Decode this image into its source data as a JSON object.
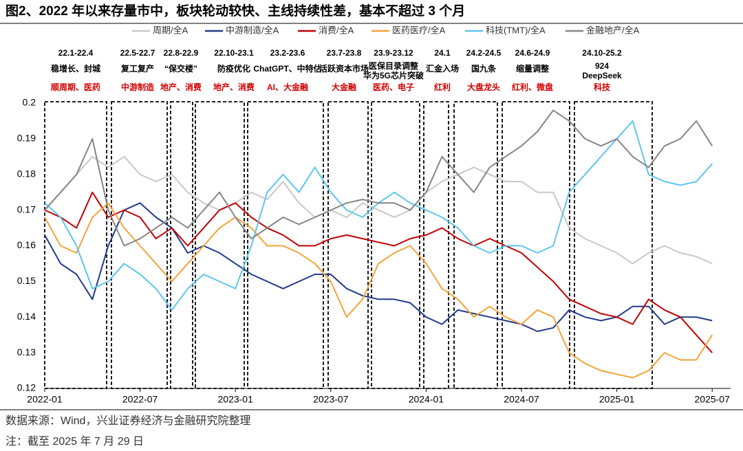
{
  "chart_data": {
    "type": "line",
    "title": "图2、2022 年以来存量市中，板块轮动较快、主线持续性差，基本不超过 3 个月",
    "source": "数据来源：Wind，兴业证券经济与金融研究院整理",
    "note": "注：截至 2025 年 7 月 29 日",
    "x": [
      "2022-01",
      "2022-02",
      "2022-03",
      "2022-04",
      "2022-05",
      "2022-06",
      "2022-07",
      "2022-08",
      "2022-09",
      "2022-10",
      "2022-11",
      "2022-12",
      "2023-01",
      "2023-02",
      "2023-03",
      "2023-04",
      "2023-05",
      "2023-06",
      "2023-07",
      "2023-08",
      "2023-09",
      "2023-10",
      "2023-11",
      "2023-12",
      "2024-01",
      "2024-02",
      "2024-03",
      "2024-04",
      "2024-05",
      "2024-06",
      "2024-07",
      "2024-08",
      "2024-09",
      "2024-10",
      "2024-11",
      "2024-12",
      "2025-01",
      "2025-02",
      "2025-03",
      "2025-04",
      "2025-05",
      "2025-06",
      "2025-07"
    ],
    "xticks": [
      "2022-01",
      "2022-07",
      "2023-01",
      "2023-07",
      "2024-01",
      "2024-07",
      "2025-01",
      "2025-07"
    ],
    "ylim": [
      0.12,
      0.2
    ],
    "yticks": [
      0.12,
      0.13,
      0.14,
      0.15,
      0.16,
      0.17,
      0.18,
      0.19,
      0.2
    ],
    "grid": false,
    "series": [
      {
        "name": "周期/全A",
        "color": "#c8c8c8",
        "values": [
          0.17,
          0.175,
          0.18,
          0.185,
          0.182,
          0.185,
          0.18,
          0.178,
          0.18,
          0.175,
          0.172,
          0.17,
          0.172,
          0.175,
          0.173,
          0.178,
          0.172,
          0.168,
          0.17,
          0.168,
          0.172,
          0.17,
          0.168,
          0.17,
          0.175,
          0.178,
          0.18,
          0.182,
          0.18,
          0.178,
          0.178,
          0.175,
          0.175,
          0.165,
          0.162,
          0.16,
          0.158,
          0.155,
          0.158,
          0.16,
          0.158,
          0.157,
          0.155
        ]
      },
      {
        "name": "中游制造/全A",
        "color": "#1f3a8a",
        "values": [
          0.163,
          0.155,
          0.152,
          0.145,
          0.16,
          0.17,
          0.172,
          0.168,
          0.165,
          0.158,
          0.16,
          0.158,
          0.155,
          0.152,
          0.15,
          0.148,
          0.15,
          0.152,
          0.152,
          0.148,
          0.146,
          0.145,
          0.145,
          0.144,
          0.14,
          0.138,
          0.142,
          0.141,
          0.14,
          0.139,
          0.138,
          0.136,
          0.137,
          0.142,
          0.14,
          0.139,
          0.14,
          0.143,
          0.143,
          0.138,
          0.14,
          0.14,
          0.139
        ]
      },
      {
        "name": "消费/全A",
        "color": "#c00000",
        "values": [
          0.17,
          0.168,
          0.165,
          0.175,
          0.168,
          0.17,
          0.168,
          0.162,
          0.165,
          0.16,
          0.165,
          0.17,
          0.172,
          0.168,
          0.165,
          0.163,
          0.16,
          0.16,
          0.162,
          0.163,
          0.162,
          0.161,
          0.16,
          0.162,
          0.163,
          0.165,
          0.162,
          0.16,
          0.162,
          0.16,
          0.158,
          0.154,
          0.15,
          0.145,
          0.143,
          0.141,
          0.14,
          0.138,
          0.145,
          0.142,
          0.14,
          0.135,
          0.13
        ]
      },
      {
        "name": "医药医疗/全A",
        "color": "#f5a33a",
        "values": [
          0.168,
          0.16,
          0.158,
          0.168,
          0.172,
          0.165,
          0.16,
          0.155,
          0.15,
          0.155,
          0.16,
          0.165,
          0.168,
          0.165,
          0.16,
          0.16,
          0.158,
          0.155,
          0.15,
          0.14,
          0.145,
          0.155,
          0.158,
          0.16,
          0.155,
          0.148,
          0.145,
          0.14,
          0.143,
          0.14,
          0.138,
          0.142,
          0.14,
          0.13,
          0.127,
          0.125,
          0.124,
          0.123,
          0.125,
          0.13,
          0.128,
          0.128,
          0.135
        ]
      },
      {
        "name": "科技(TMT)/全A",
        "color": "#5cc6ef",
        "values": [
          0.172,
          0.168,
          0.16,
          0.148,
          0.15,
          0.155,
          0.152,
          0.148,
          0.142,
          0.148,
          0.152,
          0.15,
          0.148,
          0.16,
          0.175,
          0.18,
          0.175,
          0.182,
          0.175,
          0.17,
          0.168,
          0.172,
          0.175,
          0.172,
          0.17,
          0.168,
          0.165,
          0.16,
          0.158,
          0.16,
          0.16,
          0.158,
          0.16,
          0.175,
          0.18,
          0.185,
          0.19,
          0.195,
          0.18,
          0.178,
          0.177,
          0.178,
          0.183
        ]
      },
      {
        "name": "金融地产/全A",
        "color": "#858585",
        "values": [
          0.17,
          0.175,
          0.18,
          0.19,
          0.17,
          0.16,
          0.162,
          0.165,
          0.168,
          0.165,
          0.17,
          0.175,
          0.168,
          0.162,
          0.165,
          0.168,
          0.166,
          0.168,
          0.17,
          0.172,
          0.173,
          0.172,
          0.172,
          0.17,
          0.175,
          0.185,
          0.18,
          0.175,
          0.182,
          0.185,
          0.188,
          0.192,
          0.198,
          0.195,
          0.19,
          0.188,
          0.19,
          0.185,
          0.182,
          0.188,
          0.19,
          0.195,
          0.188
        ]
      }
    ],
    "annotations": [
      {
        "period": "22.1-22.4",
        "theme": [
          "稳增长、封城"
        ],
        "sectors": "顺周期、医药"
      },
      {
        "period": "22.5-22.7",
        "theme": [
          "复工复产"
        ],
        "sectors": "中游制造"
      },
      {
        "period": "22.8-22.9",
        "theme": [
          "“保交楼”"
        ],
        "sectors": "地产、消费"
      },
      {
        "period": "22.10-23.1",
        "theme": [
          "防疫优化"
        ],
        "sectors": "地产、消费"
      },
      {
        "period": "23.2-23.6",
        "theme": [
          "ChatGPT、中特估"
        ],
        "sectors": "AI、大金融"
      },
      {
        "period": "23.7-23.8",
        "theme": [
          "活跃资本市场"
        ],
        "sectors": "大金融"
      },
      {
        "period": "23.9-23.12",
        "theme": [
          "医保目录调整",
          "华为5G芯片突破"
        ],
        "sectors": "医药、电子"
      },
      {
        "period": "24.1",
        "theme": [
          "汇金入场"
        ],
        "sectors": "红利"
      },
      {
        "period": "24.2-24.5",
        "theme": [
          "国九条"
        ],
        "sectors": "大盘龙头"
      },
      {
        "period": "24.6-24.9",
        "theme": [
          "缩量调整"
        ],
        "sectors": "红利、微盘"
      },
      {
        "period": "24.10-25.2",
        "theme": [
          "924",
          "DeepSeek"
        ],
        "sectors": "科技"
      }
    ]
  }
}
